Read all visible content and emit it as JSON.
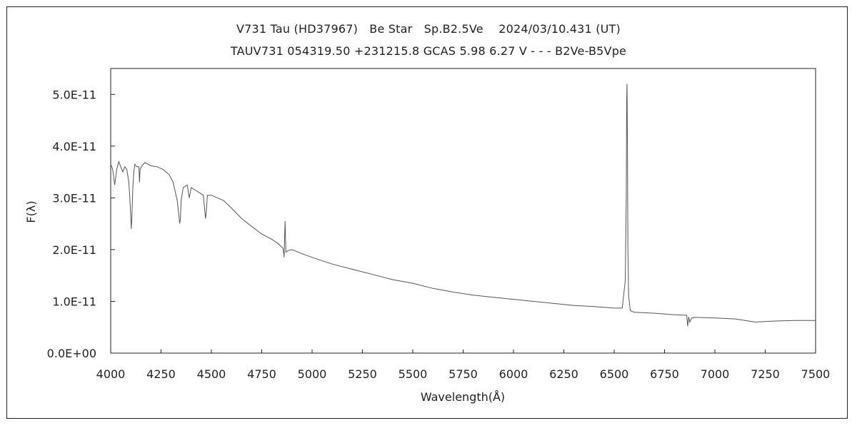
{
  "chart_data": {
    "type": "line",
    "title": "V731 Tau (HD37967)　Be Star　Sp.B2.5Ve　 2024/03/10.431 (UT)",
    "subtitle": "TAUV731 054319.50 +231215.8 GCAS 5.98 6.27 V - - - B2Ve-B5Vpe",
    "xlabel": "Wavelength(Å)",
    "ylabel": "F(λ)",
    "xlim": [
      4000,
      7500
    ],
    "ylim": [
      0,
      5.5e-11
    ],
    "x_ticks": [
      4000,
      4250,
      4500,
      4750,
      5000,
      5250,
      5500,
      5750,
      6000,
      6250,
      6500,
      6750,
      7000,
      7250,
      7500
    ],
    "y_ticks": [
      0,
      1e-11,
      2e-11,
      3e-11,
      4e-11,
      5e-11
    ],
    "y_tick_labels": [
      "0.0E+00",
      "1.0E-11",
      "2.0E-11",
      "3.0E-11",
      "4.0E-11",
      "5.0E-11"
    ],
    "grid": false,
    "legend": "none",
    "line_color": "#555555",
    "series": [
      {
        "x": [
          4000,
          4010,
          4020,
          4030,
          4040,
          4050,
          4060,
          4070,
          4080,
          4090,
          4095,
          4100,
          4102,
          4105,
          4110,
          4115,
          4120,
          4130,
          4140,
          4143,
          4146,
          4155,
          4170,
          4200,
          4230,
          4260,
          4290,
          4310,
          4330,
          4340,
          4343,
          4346,
          4350,
          4360,
          4380,
          4390,
          4400,
          4420,
          4440,
          4460,
          4471,
          4474,
          4480,
          4500,
          4530,
          4560,
          4600,
          4650,
          4700,
          4750,
          4800,
          4830,
          4855,
          4860,
          4861,
          4863,
          4866,
          4870,
          4880,
          4900,
          4950,
          5000,
          5100,
          5200,
          5300,
          5400,
          5500,
          5600,
          5700,
          5800,
          5900,
          6000,
          6100,
          6200,
          6300,
          6400,
          6500,
          6540,
          6555,
          6560,
          6562,
          6564,
          6566,
          6568,
          6572,
          6580,
          6600,
          6700,
          6800,
          6860,
          6865,
          6870,
          6875,
          6885,
          6900,
          7000,
          7100,
          7150,
          7200,
          7250,
          7300,
          7400,
          7500
        ],
        "y": [
          3.65e-11,
          3.55e-11,
          3.25e-11,
          3.55e-11,
          3.7e-11,
          3.6e-11,
          3.5e-11,
          3.6e-11,
          3.55e-11,
          3.3e-11,
          3e-11,
          2.6e-11,
          2.4e-11,
          2.6e-11,
          3.2e-11,
          3.5e-11,
          3.65e-11,
          3.6e-11,
          3.6e-11,
          3.3e-11,
          3.55e-11,
          3.62e-11,
          3.68e-11,
          3.62e-11,
          3.6e-11,
          3.55e-11,
          3.45e-11,
          3.3e-11,
          2.95e-11,
          2.6e-11,
          2.5e-11,
          2.6e-11,
          2.95e-11,
          3.2e-11,
          3.25e-11,
          3e-11,
          3.2e-11,
          3.15e-11,
          3.1e-11,
          3.05e-11,
          2.6e-11,
          2.7e-11,
          3.05e-11,
          3.05e-11,
          3e-11,
          2.95e-11,
          2.8e-11,
          2.6e-11,
          2.45e-11,
          2.3e-11,
          2.2e-11,
          2.12e-11,
          2.03e-11,
          1.9e-11,
          1.85e-11,
          2.2e-11,
          2.55e-11,
          1.95e-11,
          1.98e-11,
          2e-11,
          1.92e-11,
          1.85e-11,
          1.72e-11,
          1.62e-11,
          1.52e-11,
          1.42e-11,
          1.35e-11,
          1.25e-11,
          1.18e-11,
          1.12e-11,
          1.08e-11,
          1.04e-11,
          1e-11,
          9.6e-12,
          9.2e-12,
          9e-12,
          8.7e-12,
          8.7e-12,
          1.4e-11,
          3e-11,
          4.9e-11,
          5.2e-11,
          4e-11,
          2e-11,
          1.1e-11,
          8.2e-12,
          7.9e-12,
          7.7e-12,
          7.4e-12,
          7.3e-12,
          5.2e-12,
          7e-12,
          6e-12,
          6.8e-12,
          6.9e-12,
          6.8e-12,
          6.6e-12,
          6.3e-12,
          6e-12,
          6.1e-12,
          6.2e-12,
          6.3e-12,
          6.3e-12
        ]
      }
    ]
  }
}
